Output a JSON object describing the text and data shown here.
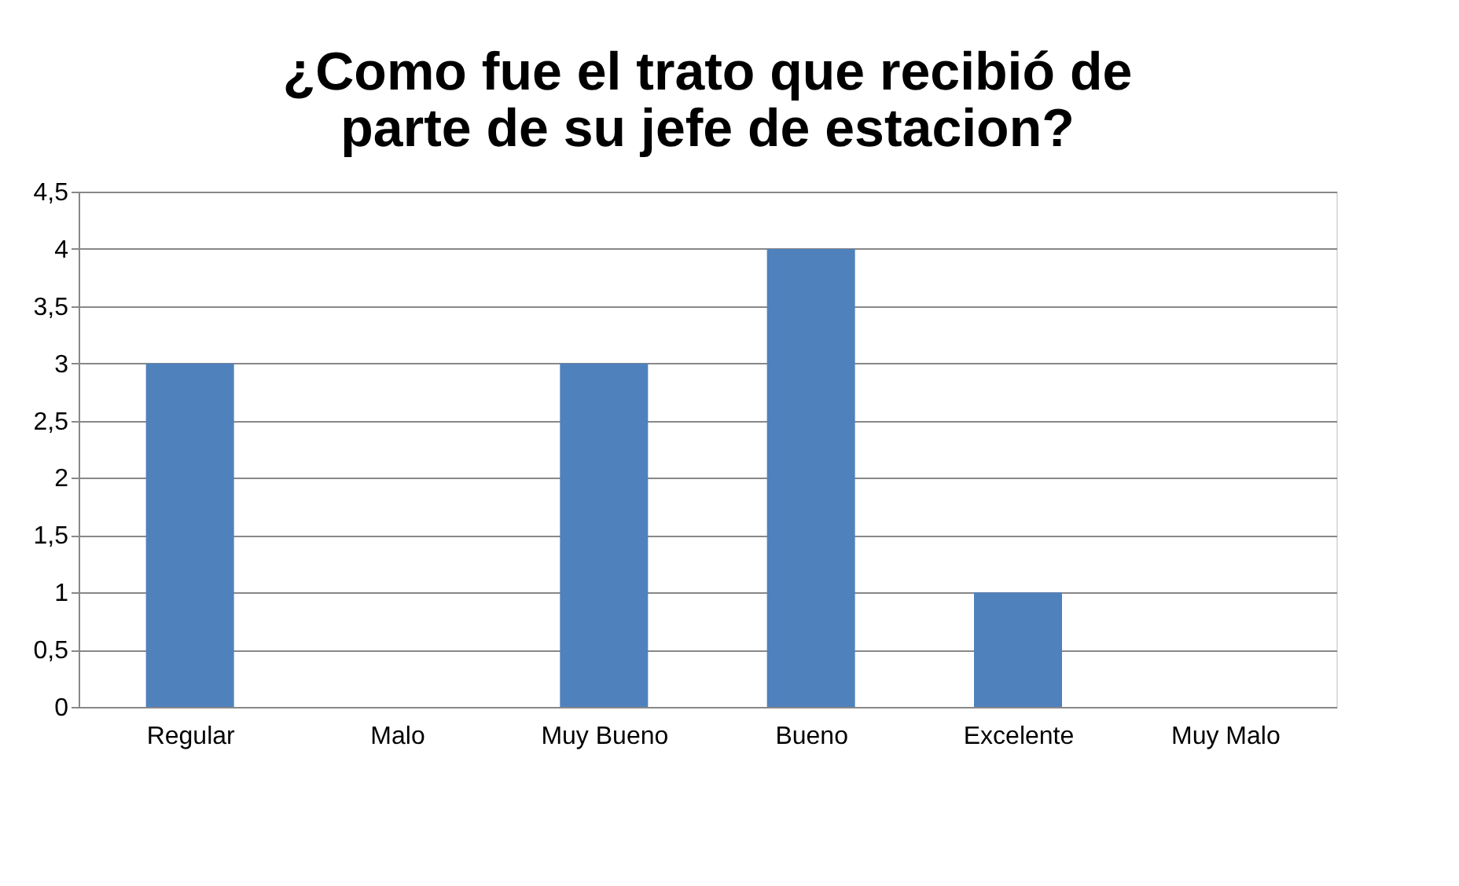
{
  "chart_data": {
    "type": "bar",
    "title": "¿Como fue el trato que recibió de parte de su jefe de estacion?",
    "categories": [
      "Regular",
      "Malo",
      "Muy Bueno",
      "Bueno",
      "Excelente",
      "Muy Malo"
    ],
    "values": [
      3,
      0,
      3,
      4,
      1,
      0
    ],
    "color": "#4f81bd",
    "ylim": [
      0,
      4.5
    ],
    "yticks": [
      0,
      {
        "value": 0.5,
        "label": "0,5"
      },
      1,
      {
        "value": 1.5,
        "label": "1,5"
      },
      2,
      {
        "value": 2.5,
        "label": "2,5"
      },
      3,
      {
        "value": 3.5,
        "label": "3,5"
      },
      4,
      {
        "value": 4.5,
        "label": "4,5"
      }
    ],
    "grid": "y"
  }
}
